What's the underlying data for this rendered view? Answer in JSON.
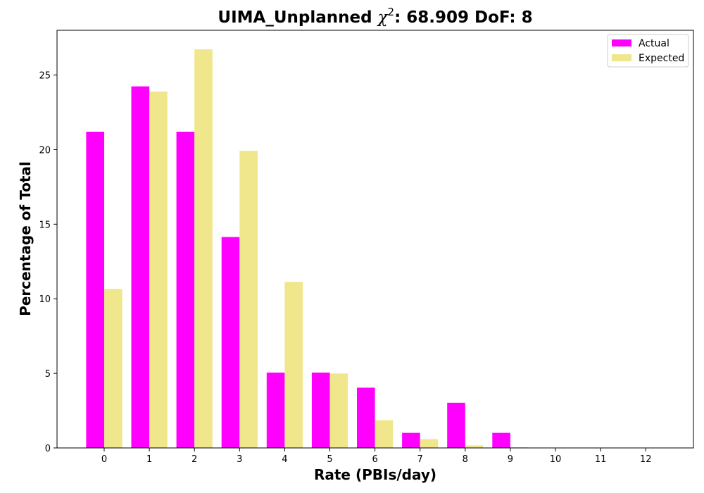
{
  "chart_data": {
    "type": "bar",
    "title": {
      "prefix": "UIMA_Unplanned ",
      "chi_symbol": "χ",
      "chi_superscript": "2",
      "suffix": ": 68.909 DoF: 8"
    },
    "xlabel": "Rate (PBIs/day)",
    "ylabel": "Percentage of Total",
    "categories": [
      "0",
      "1",
      "2",
      "3",
      "4",
      "5",
      "6",
      "7",
      "8",
      "9",
      "10",
      "11",
      "12"
    ],
    "ylim": [
      0,
      28
    ],
    "yticks": [
      0,
      5,
      10,
      15,
      20,
      25
    ],
    "grid": false,
    "legend_position": "top-right",
    "series": [
      {
        "name": "Actual",
        "color": "#ff00ff",
        "values": [
          21.2,
          24.24,
          21.2,
          14.14,
          5.05,
          5.05,
          4.04,
          1.01,
          3.03,
          1.01,
          0,
          0,
          0
        ]
      },
      {
        "name": "Expected",
        "color": "#f0e68c",
        "values": [
          10.66,
          23.89,
          26.72,
          19.92,
          11.13,
          4.99,
          1.86,
          0.59,
          0.17,
          0.04,
          0.01,
          0,
          0
        ]
      }
    ]
  }
}
